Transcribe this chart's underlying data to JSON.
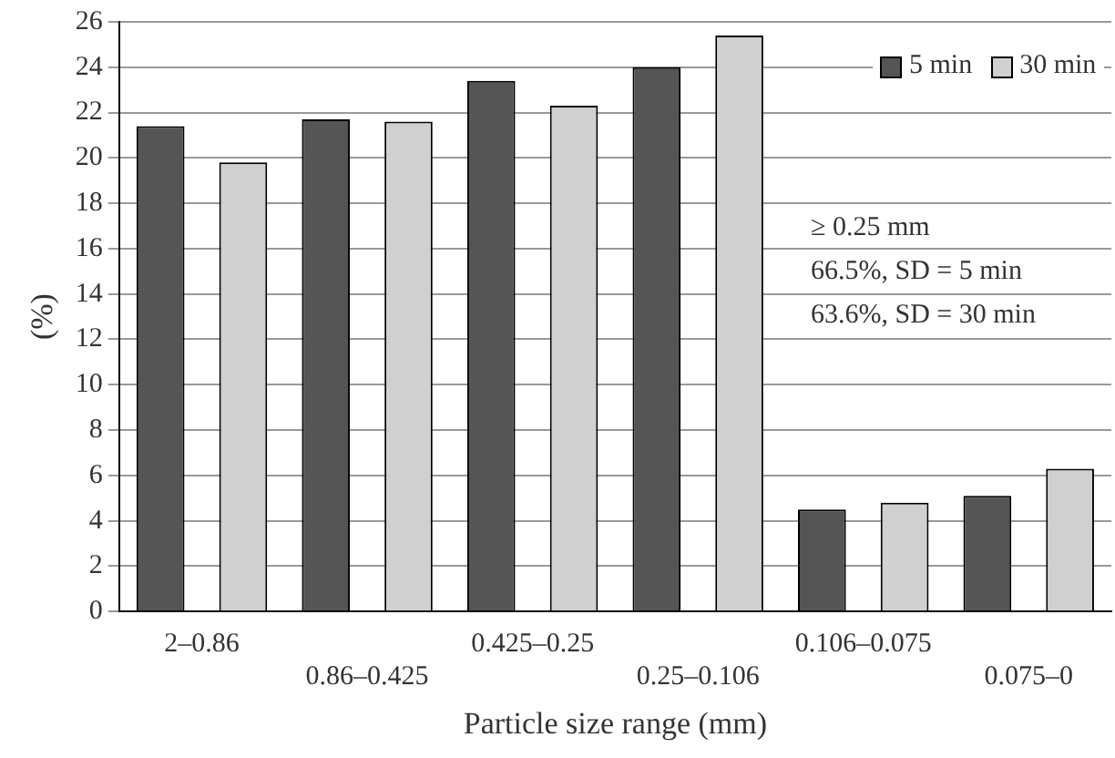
{
  "chart_data": {
    "type": "bar",
    "xlabel": "Particle size range (mm)",
    "ylabel": "(%)",
    "categories": [
      "2–0.86",
      "0.86–0.425",
      "0.425–0.25",
      "0.25–0.106",
      "0.106–0.075",
      "0.075–0"
    ],
    "series": [
      {
        "name": "5 min",
        "color": "#555555",
        "values": [
          21.4,
          21.7,
          23.4,
          24.0,
          4.5,
          5.1
        ]
      },
      {
        "name": "30 min",
        "color": "#d0d0d0",
        "values": [
          19.8,
          21.6,
          22.3,
          25.4,
          4.8,
          6.3
        ]
      }
    ],
    "ylim": [
      0,
      26
    ],
    "yticks": [
      0,
      2,
      4,
      6,
      8,
      10,
      12,
      14,
      16,
      18,
      20,
      22,
      24,
      26
    ],
    "grid": "y",
    "legend": "top right",
    "annotations": [
      "≥ 0.25 mm",
      "66.5%, SD = 5 min",
      "63.6%, SD = 30 min"
    ]
  }
}
